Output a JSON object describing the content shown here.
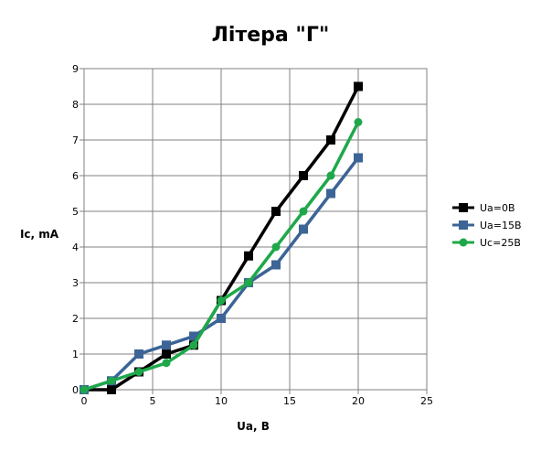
{
  "chart_data": {
    "type": "line",
    "title": "Літера \"Г\"",
    "xlabel": "Ua, В",
    "ylabel": "Ic, mA",
    "xlim": [
      0,
      25
    ],
    "ylim": [
      0,
      9
    ],
    "xticks": [
      0,
      5,
      10,
      15,
      20,
      25
    ],
    "yticks": [
      0,
      1,
      2,
      3,
      4,
      5,
      6,
      7,
      8,
      9
    ],
    "grid": true,
    "legend_position": "right",
    "series": [
      {
        "name": "Ua=0В",
        "color": "#000000",
        "marker": "square",
        "x": [
          0,
          2,
          4,
          6,
          8,
          10,
          12,
          14,
          16,
          18,
          20
        ],
        "y": [
          0,
          0,
          0.5,
          1,
          1.25,
          2.5,
          3.75,
          5,
          6,
          7,
          8.5
        ]
      },
      {
        "name": "Ua=15В",
        "color": "#3c6496",
        "marker": "square",
        "x": [
          0,
          2,
          4,
          6,
          8,
          10,
          12,
          14,
          16,
          18,
          20
        ],
        "y": [
          0,
          0.25,
          1,
          1.25,
          1.5,
          2,
          3,
          3.5,
          4.5,
          5.5,
          6.5
        ]
      },
      {
        "name": "Uc=25В",
        "color": "#1ea84a",
        "marker": "circle",
        "x": [
          0,
          2,
          4,
          6,
          8,
          10,
          12,
          14,
          16,
          18,
          20
        ],
        "y": [
          0,
          0.25,
          0.5,
          0.75,
          1.25,
          2.5,
          3,
          4,
          5,
          6,
          7.5
        ]
      }
    ]
  }
}
